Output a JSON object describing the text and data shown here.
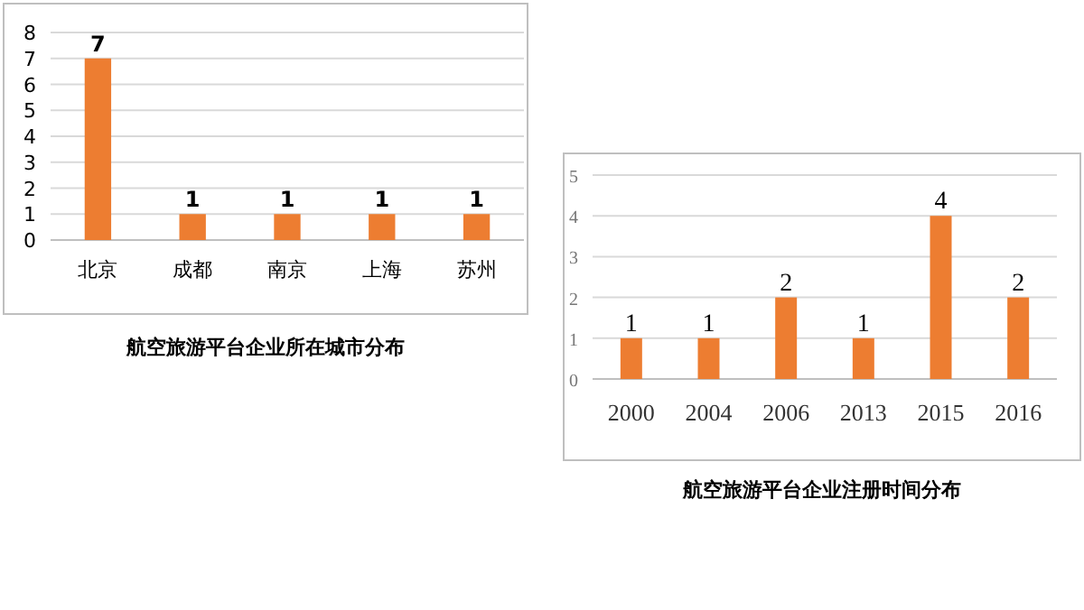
{
  "chart_data": [
    {
      "type": "bar",
      "title": "航空旅游平台企业所在城市分布",
      "categories": [
        "北京",
        "成都",
        "南京",
        "上海",
        "苏州"
      ],
      "values": [
        7,
        1,
        1,
        1,
        1
      ],
      "color": "#ed7d31",
      "ylim": [
        0,
        8
      ],
      "yticks": [
        0,
        1,
        2,
        3,
        4,
        5,
        6,
        7,
        8
      ],
      "grid": "y",
      "data_labels": true
    },
    {
      "type": "bar",
      "title": "航空旅游平台企业注册时间分布",
      "categories": [
        "2000",
        "2004",
        "2006",
        "2013",
        "2015",
        "2016"
      ],
      "values": [
        1,
        1,
        2,
        1,
        4,
        2
      ],
      "color": "#ed7d31",
      "ylim": [
        0,
        5
      ],
      "yticks": [
        0,
        1,
        2,
        3,
        4,
        5
      ],
      "grid": "y",
      "data_labels": true
    }
  ]
}
